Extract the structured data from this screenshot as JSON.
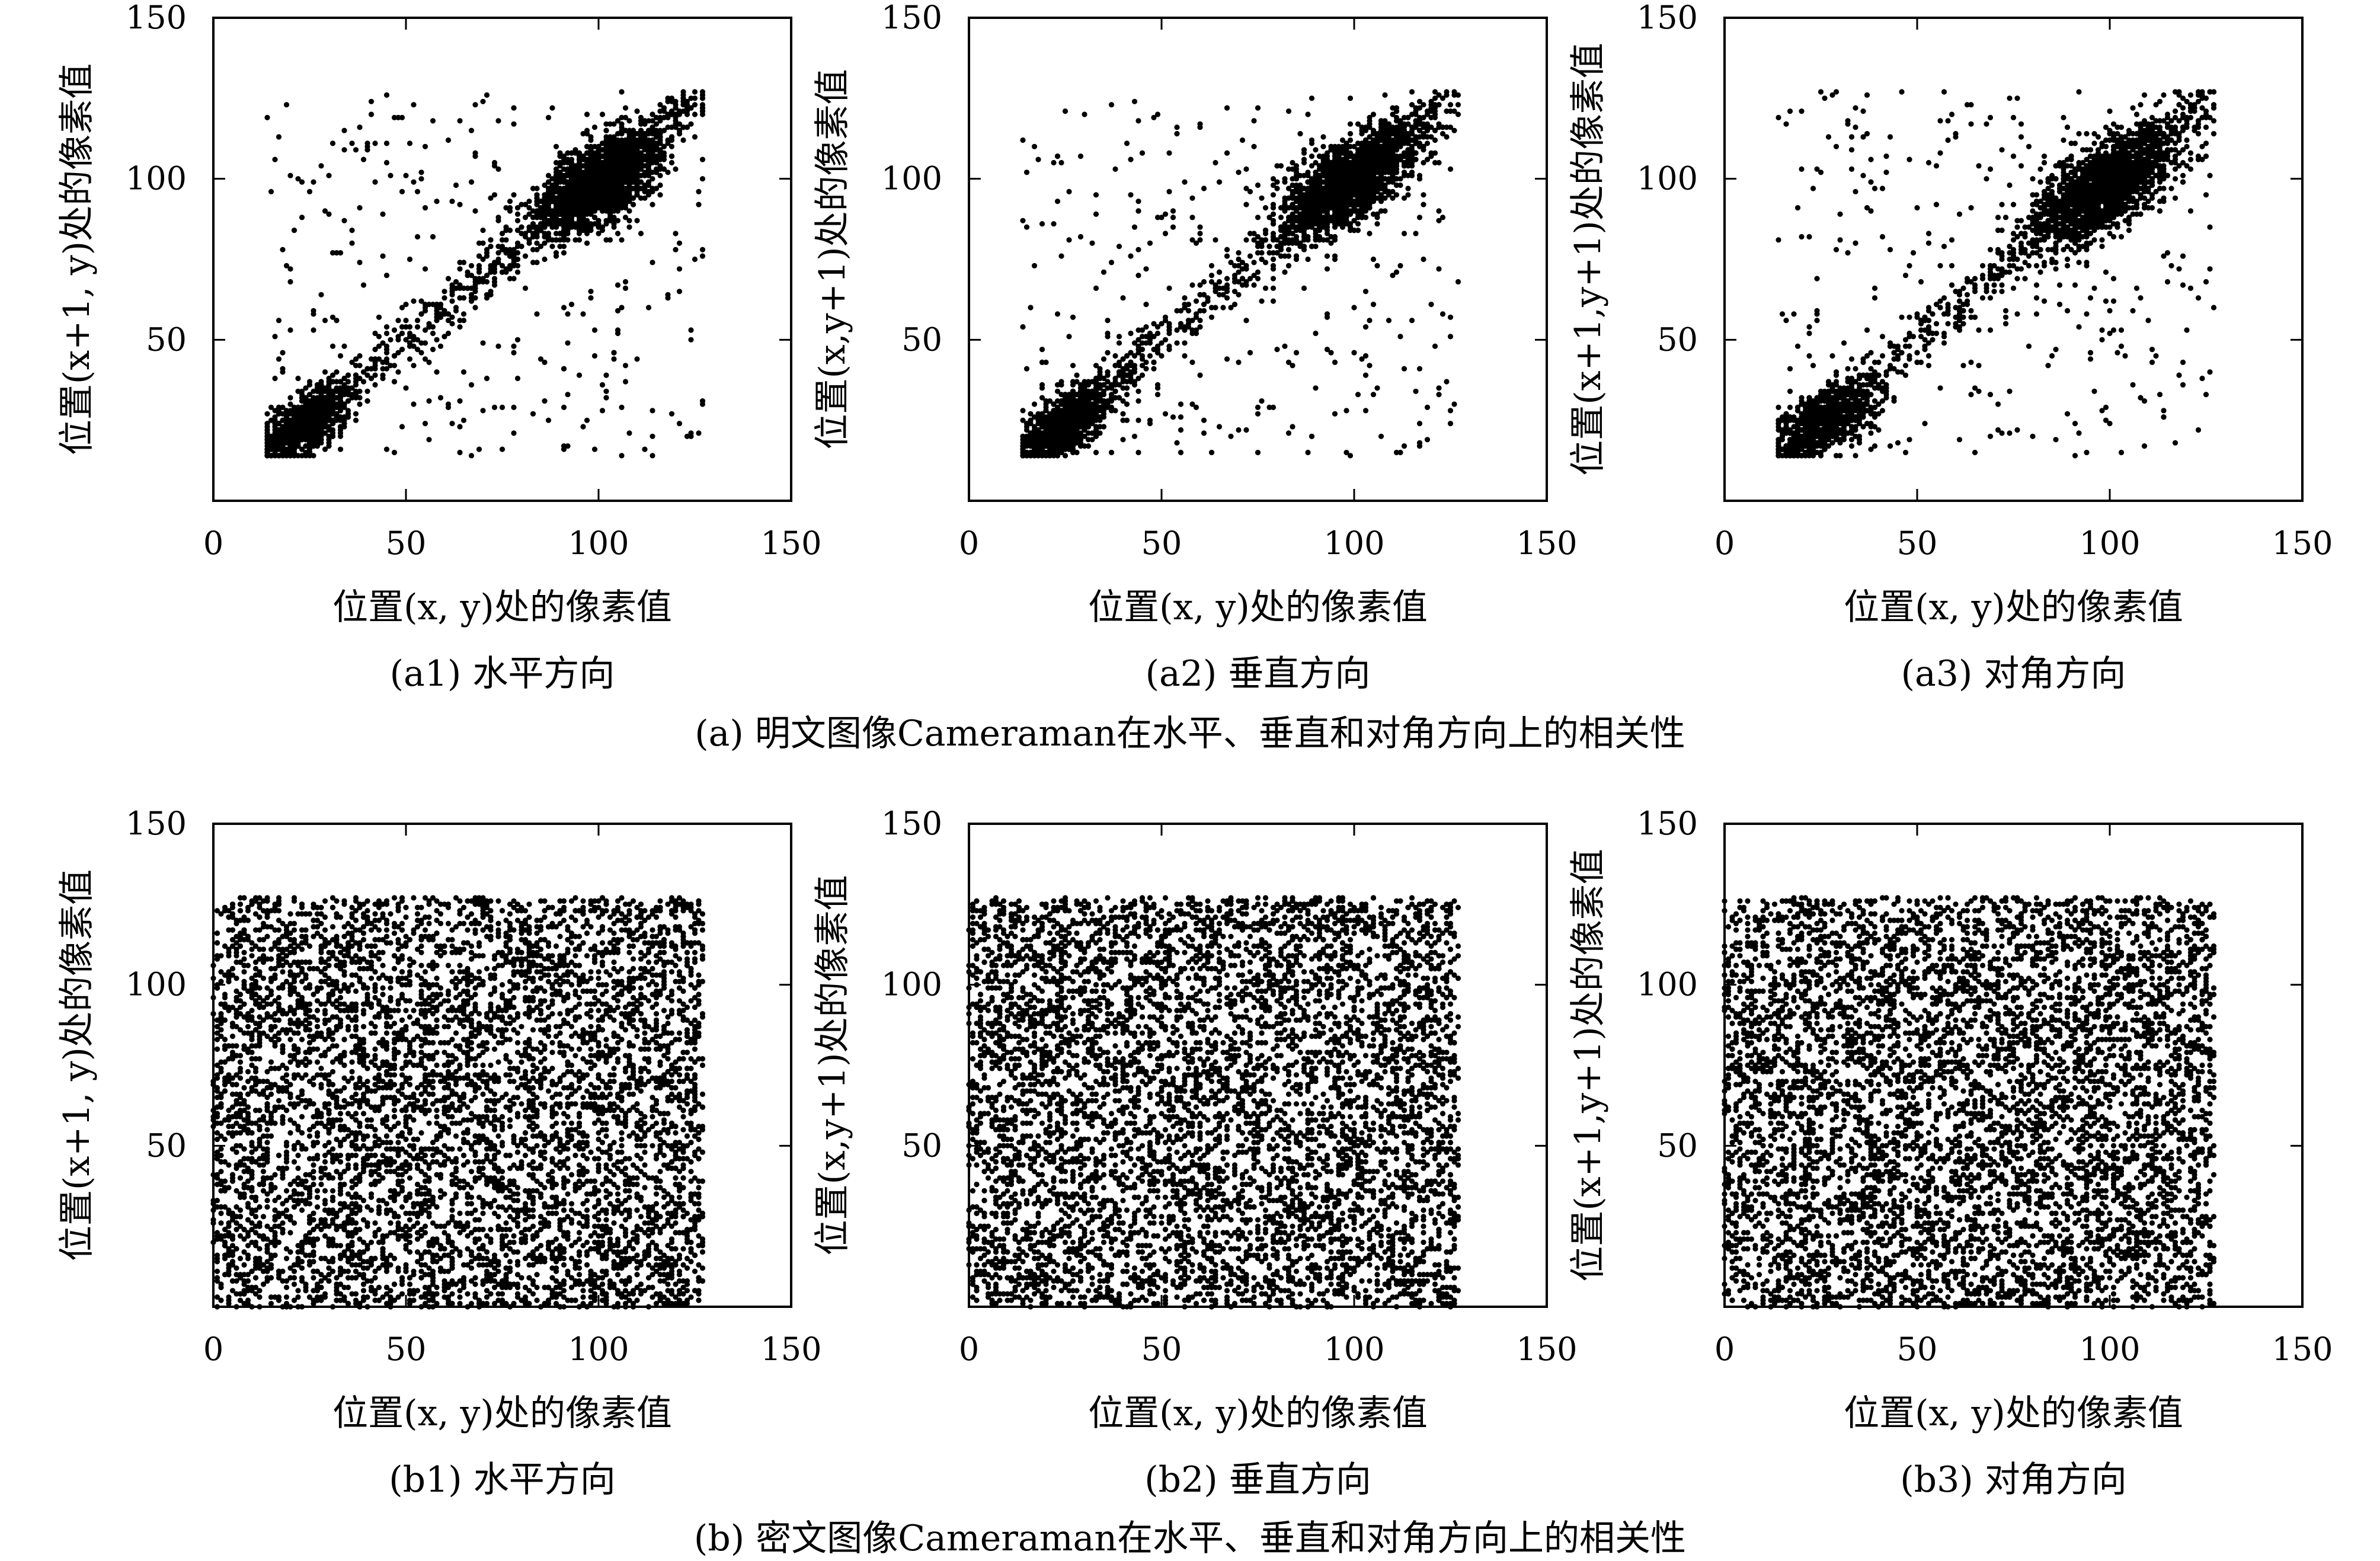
{
  "figure": {
    "row_captions": [
      "(a) 明文图像Cameraman在水平、垂直和对角方向上的相关性",
      "(b) 密文图像Cameraman在水平、垂直和对角方向上的相关性"
    ]
  },
  "chart_data": [
    {
      "id": "a1",
      "type": "scatter",
      "caption": "(a1) 水平方向",
      "xlabel": "位置(x, y)处的像素值",
      "ylabel": "位置(x+1, y)处的像素值",
      "xlim": [
        0,
        150
      ],
      "ylim": [
        0,
        150
      ],
      "xticks": [
        "0",
        "50",
        "100",
        "150"
      ],
      "yticks": [
        "50",
        "100",
        "150"
      ],
      "xtick_values": [
        0,
        50,
        100,
        150
      ],
      "ytick_values": [
        50,
        100,
        150
      ],
      "pattern": "correlated",
      "n_points": 3600,
      "value_range": [
        14,
        127
      ],
      "clusters": [
        {
          "cx": 24,
          "cy": 24,
          "sd": 5
        },
        {
          "cx": 100,
          "cy": 99,
          "sd": 7.5
        }
      ],
      "marker_color": "#000000",
      "grid": false,
      "legend": "none"
    },
    {
      "id": "a2",
      "type": "scatter",
      "caption": "(a2) 垂直方向",
      "xlabel": "位置(x, y)处的像素值",
      "ylabel": "位置(x,y+1)处的像素值",
      "xlim": [
        0,
        150
      ],
      "ylim": [
        0,
        150
      ],
      "xticks": [
        "0",
        "50",
        "100",
        "150"
      ],
      "yticks": [
        "50",
        "100",
        "150"
      ],
      "xtick_values": [
        0,
        50,
        100,
        150
      ],
      "ytick_values": [
        50,
        100,
        150
      ],
      "pattern": "correlated",
      "n_points": 3600,
      "value_range": [
        14,
        127
      ],
      "clusters": [
        {
          "cx": 25,
          "cy": 24,
          "sd": 5
        },
        {
          "cx": 99,
          "cy": 99,
          "sd": 7.5
        }
      ],
      "marker_color": "#000000",
      "grid": false,
      "legend": "none"
    },
    {
      "id": "a3",
      "type": "scatter",
      "caption": "(a3) 对角方向",
      "xlabel": "位置(x, y)处的像素值",
      "ylabel": "位置(x+1,y+1)处的像素值",
      "xlim": [
        0,
        150
      ],
      "ylim": [
        0,
        150
      ],
      "xticks": [
        "0",
        "50",
        "100",
        "150"
      ],
      "yticks": [
        "50",
        "100",
        "150"
      ],
      "xtick_values": [
        0,
        50,
        100,
        150
      ],
      "ytick_values": [
        50,
        100,
        150
      ],
      "pattern": "correlated",
      "n_points": 3600,
      "value_range": [
        14,
        127
      ],
      "clusters": [
        {
          "cx": 26,
          "cy": 25,
          "sd": 5.5
        },
        {
          "cx": 99,
          "cy": 98,
          "sd": 8
        }
      ],
      "marker_color": "#000000",
      "grid": false,
      "legend": "none"
    },
    {
      "id": "b1",
      "type": "scatter",
      "caption": "(b1) 水平方向",
      "xlabel": "位置(x, y)处的像素值",
      "ylabel": "位置(x+1, y)处的像素值",
      "xlim": [
        0,
        150
      ],
      "ylim": [
        0,
        150
      ],
      "xticks": [
        "0",
        "50",
        "100",
        "150"
      ],
      "yticks": [
        "50",
        "100",
        "150"
      ],
      "xtick_values": [
        0,
        50,
        100,
        150
      ],
      "ytick_values": [
        50,
        100,
        150
      ],
      "pattern": "uniform",
      "n_points": 6000,
      "value_range": [
        0,
        127
      ],
      "marker_color": "#000000",
      "grid": false,
      "legend": "none"
    },
    {
      "id": "b2",
      "type": "scatter",
      "caption": "(b2) 垂直方向",
      "xlabel": "位置(x, y)处的像素值",
      "ylabel": "位置(x,y+1)处的像素值",
      "xlim": [
        0,
        150
      ],
      "ylim": [
        0,
        150
      ],
      "xticks": [
        "0",
        "50",
        "100",
        "150"
      ],
      "yticks": [
        "50",
        "100",
        "150"
      ],
      "xtick_values": [
        0,
        50,
        100,
        150
      ],
      "ytick_values": [
        50,
        100,
        150
      ],
      "pattern": "uniform",
      "n_points": 6000,
      "value_range": [
        0,
        127
      ],
      "marker_color": "#000000",
      "grid": false,
      "legend": "none"
    },
    {
      "id": "b3",
      "type": "scatter",
      "caption": "(b3) 对角方向",
      "xlabel": "位置(x, y)处的像素值",
      "ylabel": "位置(x+1,y+1)处的像素值",
      "xlim": [
        0,
        150
      ],
      "ylim": [
        0,
        150
      ],
      "xticks": [
        "0",
        "50",
        "100",
        "150"
      ],
      "yticks": [
        "50",
        "100",
        "150"
      ],
      "xtick_values": [
        0,
        50,
        100,
        150
      ],
      "ytick_values": [
        50,
        100,
        150
      ],
      "pattern": "uniform",
      "n_points": 6000,
      "value_range": [
        0,
        127
      ],
      "marker_color": "#000000",
      "grid": false,
      "legend": "none"
    }
  ]
}
